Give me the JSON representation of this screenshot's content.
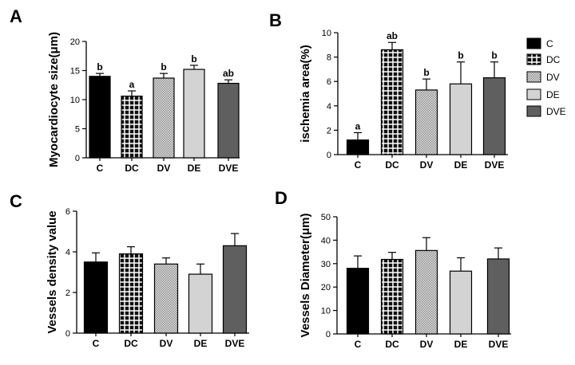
{
  "colors": {
    "C": "#000000",
    "DC": "checker",
    "DV": "dense-dots",
    "DE": "#d3d3d3",
    "DVE": "#5f5f5f",
    "axis": "#000000"
  },
  "legend": {
    "entries": [
      "C",
      "DC",
      "DV",
      "DE",
      "DVE"
    ]
  },
  "chart_data": [
    {
      "panel": "A",
      "type": "bar",
      "title": "",
      "xlabel": "",
      "ylabel": "Myocardiocyte size(μm)",
      "categories": [
        "C",
        "DC",
        "DV",
        "DE",
        "DVE"
      ],
      "values": [
        14.0,
        10.6,
        13.7,
        15.2,
        12.8
      ],
      "errors": [
        0.5,
        0.9,
        0.8,
        0.7,
        0.6
      ],
      "significance": [
        "b",
        "a",
        "b",
        "b",
        "ab"
      ],
      "ylim": [
        0,
        20
      ],
      "yticks": [
        0,
        5,
        10,
        15,
        20
      ]
    },
    {
      "panel": "B",
      "type": "bar",
      "title": "",
      "xlabel": "",
      "ylabel": "ischemia area(%)",
      "categories": [
        "C",
        "DC",
        "DV",
        "DE",
        "DVE"
      ],
      "values": [
        1.2,
        8.6,
        5.3,
        5.8,
        6.3
      ],
      "errors": [
        0.6,
        0.6,
        0.9,
        1.8,
        1.3
      ],
      "significance": [
        "a",
        "ab",
        "b",
        "b",
        "b"
      ],
      "ylim": [
        0,
        10
      ],
      "yticks": [
        0,
        2,
        4,
        6,
        8,
        10
      ]
    },
    {
      "panel": "C",
      "type": "bar",
      "title": "",
      "xlabel": "",
      "ylabel": "Vessels density value",
      "categories": [
        "C",
        "DC",
        "DV",
        "DE",
        "DVE"
      ],
      "values": [
        3.5,
        3.9,
        3.4,
        2.9,
        4.3
      ],
      "errors": [
        0.45,
        0.35,
        0.3,
        0.5,
        0.6
      ],
      "significance": [
        "",
        "",
        "",
        "",
        ""
      ],
      "ylim": [
        0,
        6
      ],
      "yticks": [
        0,
        2,
        4,
        6
      ]
    },
    {
      "panel": "D",
      "type": "bar",
      "title": "",
      "xlabel": "",
      "ylabel": "Vessels Diameter(μm)",
      "categories": [
        "C",
        "DC",
        "DV",
        "DE",
        "DVE"
      ],
      "values": [
        28,
        31.8,
        35.6,
        26.8,
        32
      ],
      "errors": [
        5.3,
        3.0,
        5.5,
        5.7,
        4.7
      ],
      "significance": [
        "",
        "",
        "",
        "",
        ""
      ],
      "ylim": [
        0,
        50
      ],
      "yticks": [
        0,
        10,
        20,
        30,
        40,
        50
      ]
    }
  ]
}
